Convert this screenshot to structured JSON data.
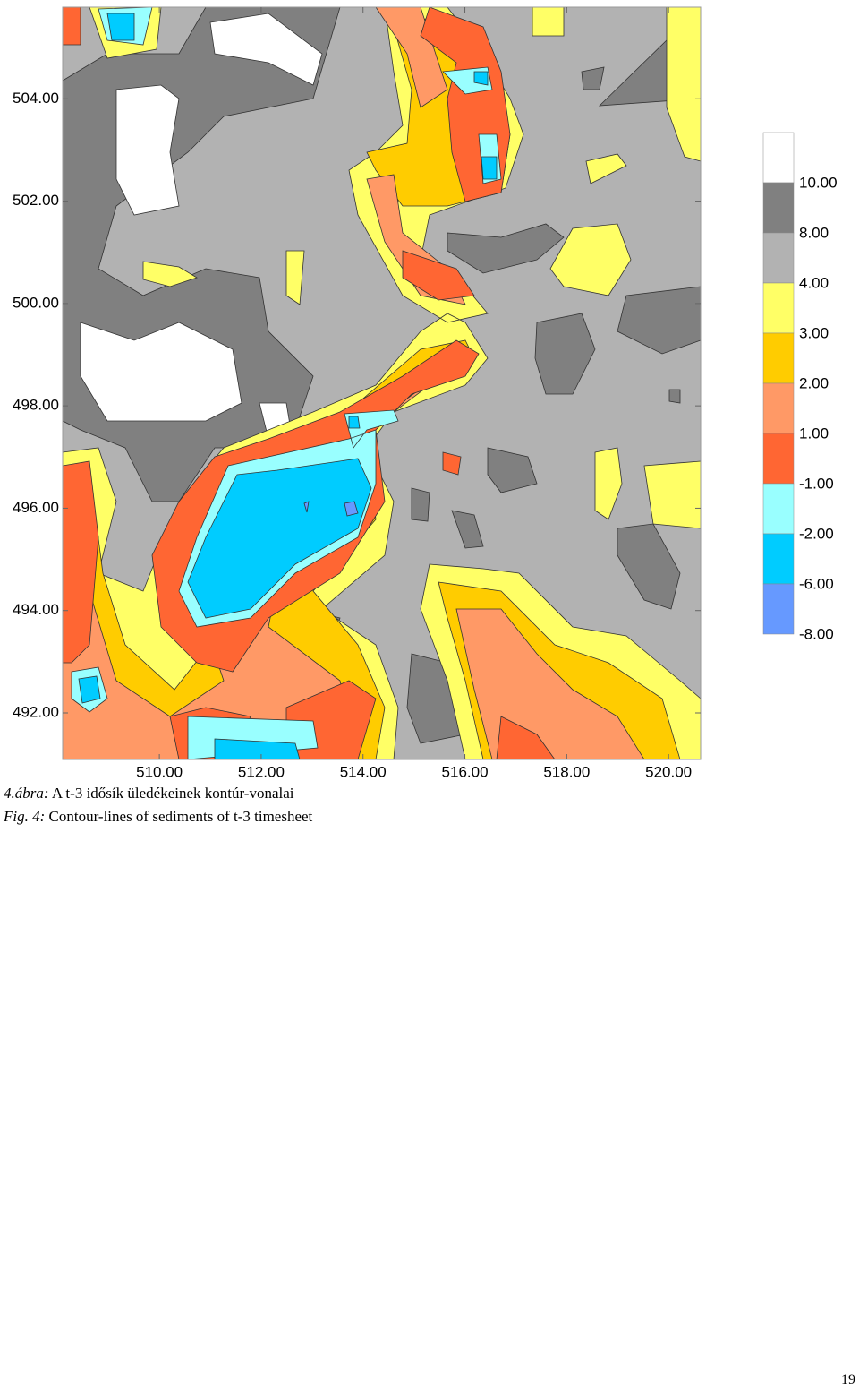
{
  "chart_data": {
    "type": "contour",
    "xlim": [
      508.1,
      520.63
    ],
    "ylim": [
      491.09,
      505.79
    ],
    "xticks": [
      {
        "value": 510,
        "label": "510.00"
      },
      {
        "value": 512,
        "label": "512.00"
      },
      {
        "value": 514,
        "label": "514.00"
      },
      {
        "value": 516,
        "label": "516.00"
      },
      {
        "value": 518,
        "label": "518.00"
      },
      {
        "value": 520,
        "label": "520.00"
      }
    ],
    "yticks": [
      {
        "value": 492,
        "label": "492.00"
      },
      {
        "value": 494,
        "label": "494.00"
      },
      {
        "value": 496,
        "label": "496.00"
      },
      {
        "value": 498,
        "label": "498.00"
      },
      {
        "value": 500,
        "label": "500.00"
      },
      {
        "value": 502,
        "label": "502.00"
      },
      {
        "value": 504,
        "label": "504.00"
      }
    ],
    "levels": [
      {
        "value": 10,
        "label": "10.00"
      },
      {
        "value": 8,
        "label": "8.00"
      },
      {
        "value": 4,
        "label": "4.00"
      },
      {
        "value": 3,
        "label": "3.00"
      },
      {
        "value": 2,
        "label": "2.00"
      },
      {
        "value": 1,
        "label": "1.00"
      },
      {
        "value": -1,
        "label": "-1.00"
      },
      {
        "value": -2,
        "label": "-2.00"
      },
      {
        "value": -6,
        "label": "-6.00"
      },
      {
        "value": -8,
        "label": "-8.00"
      }
    ],
    "level_colors": [
      "#ffffff",
      "#808080",
      "#b2b2b2",
      "#ffff66",
      "#ffcc00",
      "#ff9966",
      "#ff6633",
      "#99ffff",
      "#00ccff",
      "#6699ff"
    ]
  },
  "captions": [
    {
      "label": "4.ábra:",
      "text": "A t-3 idősík üledékeinek kontúr-vonalai"
    },
    {
      "label": "Fig. 4:",
      "text": "Contour-lines of sediments of t-3 timesheet"
    }
  ],
  "page_number": "19"
}
